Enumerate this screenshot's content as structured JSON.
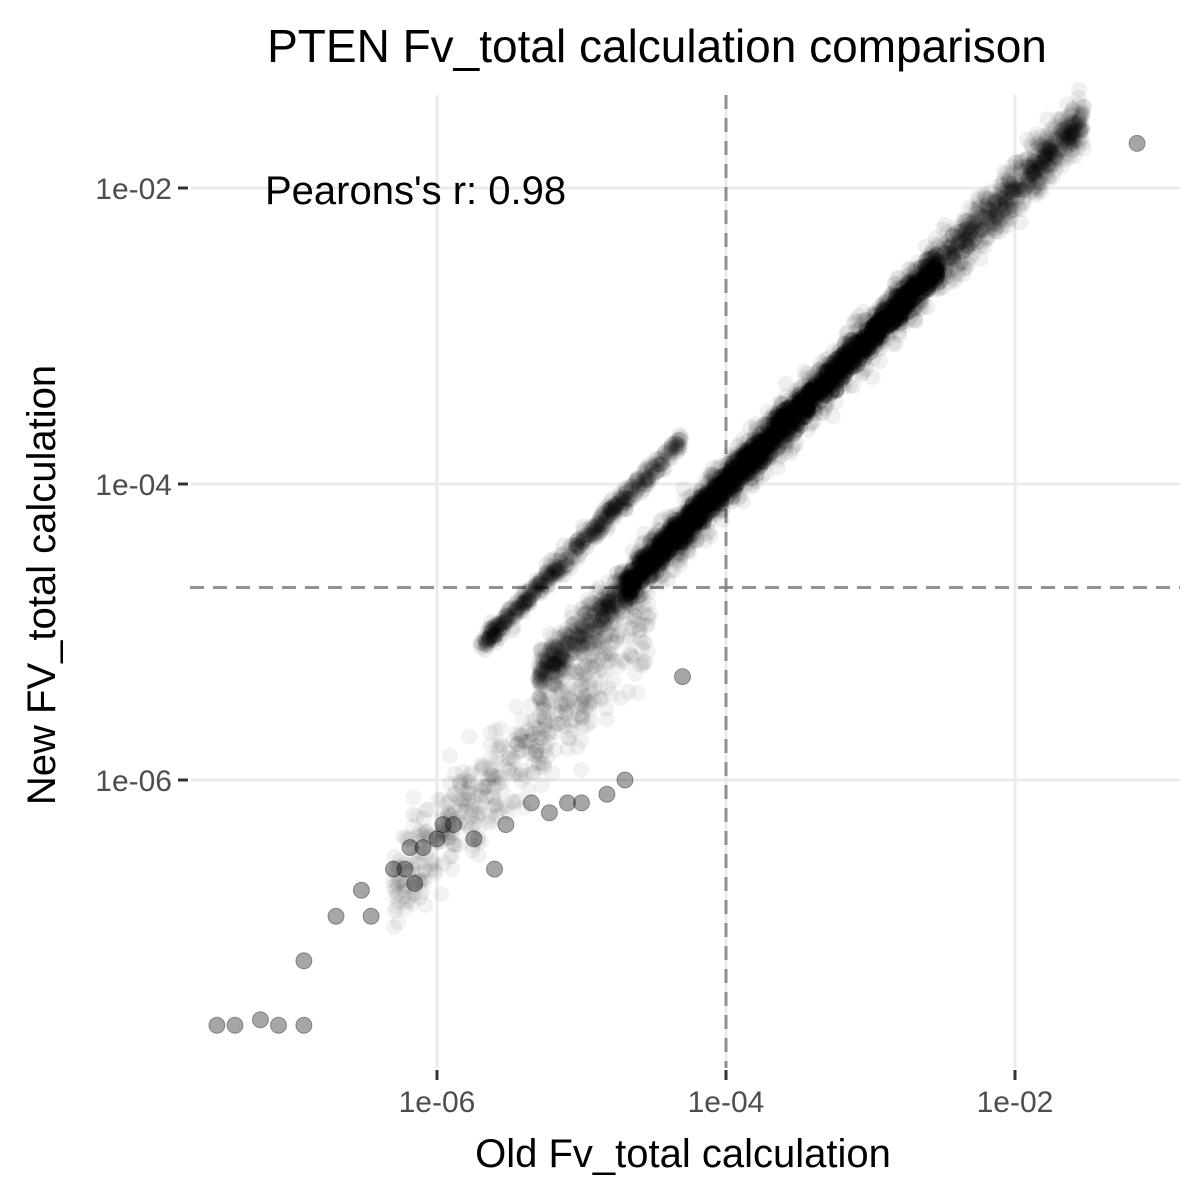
{
  "chart_data": {
    "type": "scatter",
    "title": "PTEN Fv_total calculation comparison",
    "xlabel": "Old Fv_total calculation",
    "ylabel": "New FV_total calculation",
    "x_scale": "log10",
    "y_scale": "log10",
    "xlim": [
      1e-08,
      0.1
    ],
    "ylim": [
      1e-08,
      0.04
    ],
    "x_ticks": [
      1e-06,
      0.0001,
      0.01
    ],
    "x_tick_labels": [
      "1e-06",
      "1e-04",
      "1e-02"
    ],
    "y_ticks": [
      1e-06,
      0.0001,
      0.01
    ],
    "y_tick_labels": [
      "1e-06",
      "1e-04",
      "1e-02"
    ],
    "grid": true,
    "reference_lines": [
      {
        "orientation": "vertical",
        "value": 0.0001,
        "style": "dashed"
      },
      {
        "orientation": "horizontal",
        "value": 2e-05,
        "style": "dashed"
      }
    ],
    "annotation": "Pearons's r: 0.98",
    "correlation": 0.98,
    "point_color": "#000000",
    "main_band": {
      "x_range": [
        5e-06,
        0.03
      ],
      "y_equals_x": true
    },
    "secondary_band": {
      "x_range": [
        2e-06,
        5e-05
      ],
      "y_over_x": 4
    },
    "points": [
      {
        "x": 3e-08,
        "y": 2.2e-08
      },
      {
        "x": 4e-08,
        "y": 2.2e-08
      },
      {
        "x": 6e-08,
        "y": 2.4e-08
      },
      {
        "x": 8e-08,
        "y": 2.2e-08
      },
      {
        "x": 1.2e-07,
        "y": 2.2e-08
      },
      {
        "x": 1.2e-07,
        "y": 6e-08
      },
      {
        "x": 2e-07,
        "y": 1.2e-07
      },
      {
        "x": 3e-07,
        "y": 1.8e-07
      },
      {
        "x": 3.5e-07,
        "y": 1.2e-07
      },
      {
        "x": 5e-07,
        "y": 2.5e-07
      },
      {
        "x": 6e-07,
        "y": 2.5e-07
      },
      {
        "x": 7e-07,
        "y": 2e-07
      },
      {
        "x": 6.5e-07,
        "y": 3.5e-07
      },
      {
        "x": 8e-07,
        "y": 3.5e-07
      },
      {
        "x": 1e-06,
        "y": 4e-07
      },
      {
        "x": 1.1e-06,
        "y": 5e-07
      },
      {
        "x": 1.3e-06,
        "y": 5e-07
      },
      {
        "x": 1.8e-06,
        "y": 4e-07
      },
      {
        "x": 2.5e-06,
        "y": 2.5e-07
      },
      {
        "x": 3e-06,
        "y": 5e-07
      },
      {
        "x": 4.5e-06,
        "y": 7e-07
      },
      {
        "x": 6e-06,
        "y": 6e-07
      },
      {
        "x": 8e-06,
        "y": 7e-07
      },
      {
        "x": 1e-05,
        "y": 7e-07
      },
      {
        "x": 1.5e-05,
        "y": 8e-07
      },
      {
        "x": 2e-05,
        "y": 1e-06
      },
      {
        "x": 5e-05,
        "y": 5e-06
      },
      {
        "x": 0.07,
        "y": 0.02
      }
    ]
  }
}
